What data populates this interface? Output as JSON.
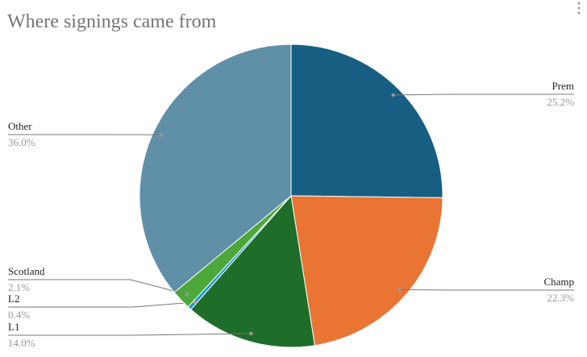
{
  "chart_data": {
    "type": "pie",
    "title": "Where signings came from",
    "categories": [
      "Prem",
      "Champ",
      "L1",
      "L2",
      "Scotland",
      "Other"
    ],
    "values": [
      25.2,
      22.3,
      14.0,
      0.4,
      2.1,
      36.0
    ],
    "value_labels": [
      "25.2%",
      "22.3%",
      "14.0%",
      "0.4%",
      "2.1%",
      "36.0%"
    ],
    "colors": [
      "#175e83",
      "#e97434",
      "#1e6e2a",
      "#1a9ad6",
      "#4ca83a",
      "#5f90a8"
    ]
  }
}
